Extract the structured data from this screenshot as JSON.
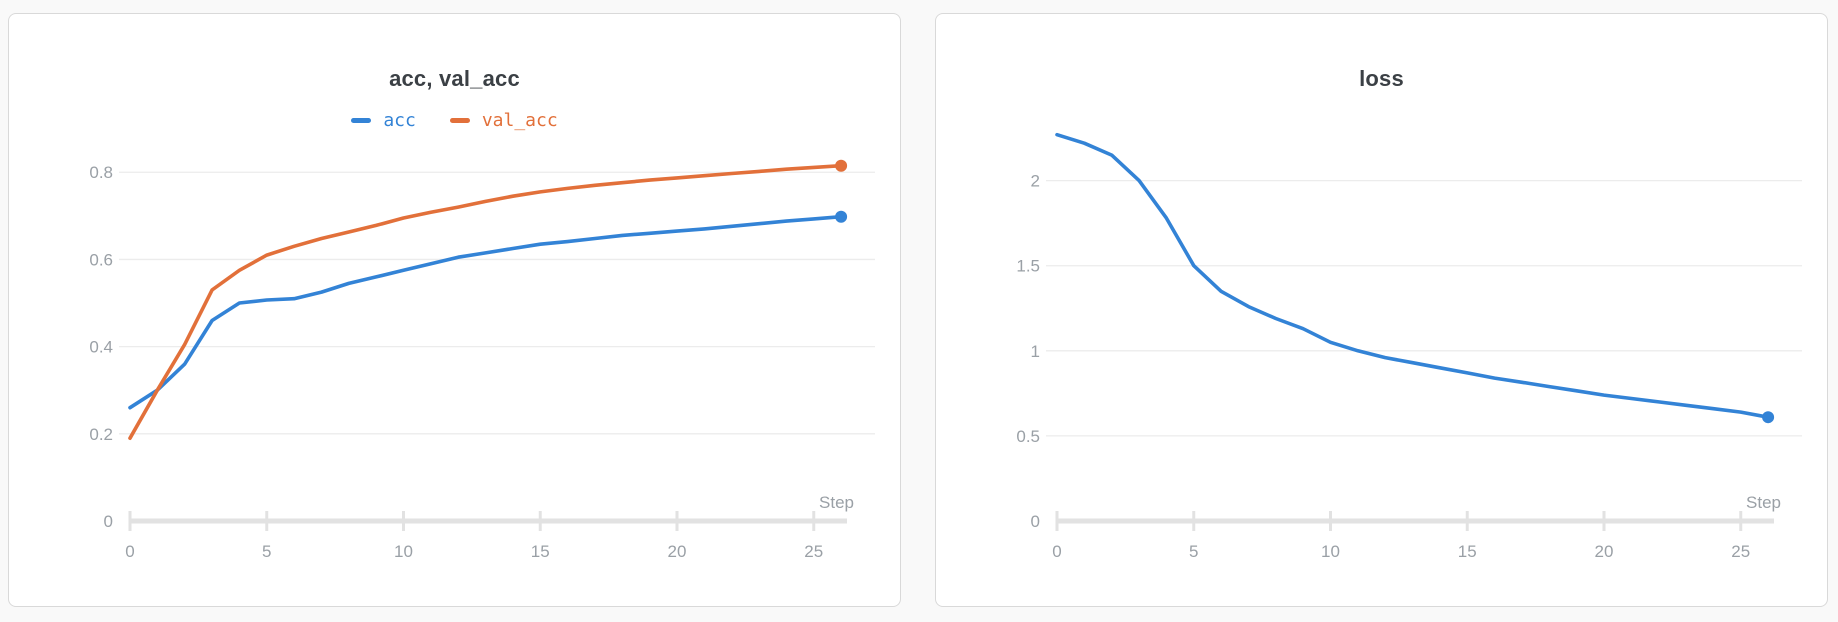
{
  "page": {
    "background": "#f9f9f9",
    "card_background": "#ffffff",
    "card_border": "#d9d9d9"
  },
  "colors": {
    "blue": "#3383d6",
    "orange": "#e2703a",
    "grid": "#ececec",
    "axis": "#e2e2e2",
    "tick_label": "#9aa0a6",
    "title": "#3b4045"
  },
  "chart_data": [
    {
      "type": "line",
      "title": "acc, val_acc",
      "xlabel": "Step",
      "grid": true,
      "legend": true,
      "legend_position": "top-center",
      "end_dot": true,
      "x": [
        0,
        1,
        2,
        3,
        4,
        5,
        6,
        7,
        8,
        9,
        10,
        11,
        12,
        13,
        14,
        15,
        16,
        17,
        18,
        19,
        20,
        21,
        22,
        23,
        24,
        25,
        26
      ],
      "xticks": [
        0,
        5,
        10,
        15,
        20,
        25
      ],
      "yticks": [
        0,
        0.2,
        0.4,
        0.6,
        0.8
      ],
      "ytick_labels": [
        "0",
        "0.2",
        "0.4",
        "0.6",
        "0.8"
      ],
      "xlim": [
        0,
        26
      ],
      "ylim": [
        0,
        0.89
      ],
      "series": [
        {
          "name": "acc",
          "color_key": "blue",
          "values": [
            0.26,
            0.3,
            0.36,
            0.46,
            0.5,
            0.507,
            0.51,
            0.525,
            0.545,
            0.56,
            0.575,
            0.59,
            0.605,
            0.615,
            0.625,
            0.635,
            0.641,
            0.648,
            0.655,
            0.66,
            0.665,
            0.67,
            0.676,
            0.682,
            0.688,
            0.693,
            0.698
          ]
        },
        {
          "name": "val_acc",
          "color_key": "orange",
          "values": [
            0.19,
            0.3,
            0.405,
            0.53,
            0.575,
            0.61,
            0.63,
            0.648,
            0.663,
            0.678,
            0.695,
            0.708,
            0.72,
            0.733,
            0.745,
            0.755,
            0.763,
            0.77,
            0.776,
            0.782,
            0.787,
            0.792,
            0.797,
            0.802,
            0.807,
            0.811,
            0.815
          ]
        }
      ]
    },
    {
      "type": "line",
      "title": "loss",
      "xlabel": "Step",
      "grid": true,
      "legend": false,
      "end_dot": true,
      "x": [
        0,
        1,
        2,
        3,
        4,
        5,
        6,
        7,
        8,
        9,
        10,
        11,
        12,
        13,
        14,
        15,
        16,
        17,
        18,
        19,
        20,
        21,
        22,
        23,
        24,
        25,
        26
      ],
      "xticks": [
        0,
        5,
        10,
        15,
        20,
        25
      ],
      "yticks": [
        0,
        0.5,
        1,
        1.5,
        2
      ],
      "ytick_labels": [
        "0",
        "0.5",
        "1",
        "1.5",
        "2"
      ],
      "xlim": [
        0,
        26
      ],
      "ylim": [
        0,
        2.28
      ],
      "series": [
        {
          "name": "loss",
          "color_key": "blue",
          "values": [
            2.27,
            2.22,
            2.15,
            2.0,
            1.78,
            1.5,
            1.35,
            1.26,
            1.19,
            1.13,
            1.05,
            1.0,
            0.96,
            0.93,
            0.9,
            0.87,
            0.84,
            0.815,
            0.79,
            0.765,
            0.74,
            0.72,
            0.7,
            0.68,
            0.66,
            0.64,
            0.61
          ]
        }
      ]
    }
  ]
}
